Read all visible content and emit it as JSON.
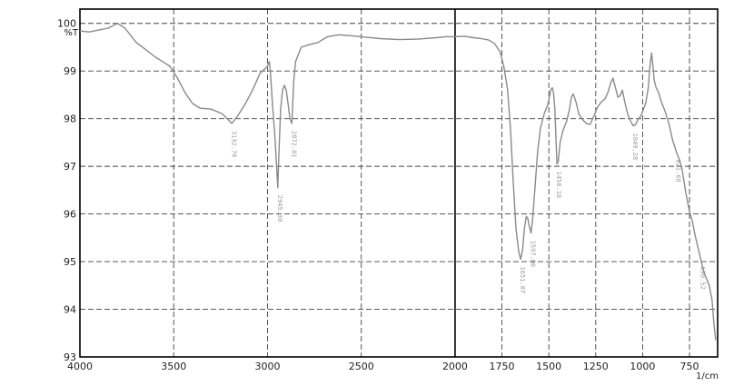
{
  "chart_data": {
    "type": "line",
    "title": "",
    "ylabel": "%T",
    "xlabel": "1/cm",
    "xlim": [
      4000,
      600
    ],
    "ylim": [
      93,
      100.3
    ],
    "x_reversed": true,
    "grid": true,
    "colors": {
      "line": "#8a8a8a",
      "grid": "#444444",
      "frame": "#000000",
      "axis_2000": "#000000"
    },
    "x_ticks": [
      {
        "value": 4000,
        "label": "4000"
      },
      {
        "value": 3500,
        "label": "3500"
      },
      {
        "value": 3000,
        "label": "3000"
      },
      {
        "value": 2500,
        "label": "2500"
      },
      {
        "value": 2000,
        "label": "2000"
      },
      {
        "value": 1750,
        "label": "1750"
      },
      {
        "value": 1500,
        "label": "1500"
      },
      {
        "value": 1250,
        "label": "1250"
      },
      {
        "value": 1000,
        "label": "1000"
      },
      {
        "value": 750,
        "label": "750"
      }
    ],
    "y_ticks": [
      {
        "value": 100,
        "label": "100"
      },
      {
        "value": 99,
        "label": "99"
      },
      {
        "value": 98,
        "label": "98"
      },
      {
        "value": 97,
        "label": "97"
      },
      {
        "value": 96,
        "label": "96"
      },
      {
        "value": 95,
        "label": "95"
      },
      {
        "value": 94,
        "label": "94"
      },
      {
        "value": 93,
        "label": "93"
      }
    ],
    "series": [
      {
        "points": [
          [
            4000,
            99.84
          ],
          [
            3950,
            99.82
          ],
          [
            3900,
            99.86
          ],
          [
            3850,
            99.9
          ],
          [
            3800,
            100.0
          ],
          [
            3760,
            99.9
          ],
          [
            3700,
            99.6
          ],
          [
            3650,
            99.45
          ],
          [
            3600,
            99.3
          ],
          [
            3560,
            99.2
          ],
          [
            3520,
            99.1
          ],
          [
            3480,
            98.85
          ],
          [
            3440,
            98.55
          ],
          [
            3400,
            98.32
          ],
          [
            3360,
            98.22
          ],
          [
            3300,
            98.2
          ],
          [
            3240,
            98.1
          ],
          [
            3210,
            97.98
          ],
          [
            3190,
            97.9
          ],
          [
            3160,
            98.05
          ],
          [
            3120,
            98.3
          ],
          [
            3080,
            98.6
          ],
          [
            3040,
            98.95
          ],
          [
            3000,
            99.1
          ],
          [
            2990,
            99.2
          ],
          [
            2985,
            99.0
          ],
          [
            2975,
            98.4
          ],
          [
            2960,
            97.6
          ],
          [
            2950,
            96.9
          ],
          [
            2945,
            96.55
          ],
          [
            2940,
            97.2
          ],
          [
            2930,
            98.2
          ],
          [
            2920,
            98.6
          ],
          [
            2910,
            98.7
          ],
          [
            2900,
            98.6
          ],
          [
            2890,
            98.3
          ],
          [
            2880,
            98.0
          ],
          [
            2870,
            97.9
          ],
          [
            2860,
            98.8
          ],
          [
            2850,
            99.2
          ],
          [
            2820,
            99.5
          ],
          [
            2780,
            99.55
          ],
          [
            2730,
            99.6
          ],
          [
            2680,
            99.72
          ],
          [
            2620,
            99.76
          ],
          [
            2550,
            99.74
          ],
          [
            2500,
            99.72
          ],
          [
            2400,
            99.68
          ],
          [
            2300,
            99.66
          ],
          [
            2200,
            99.67
          ],
          [
            2100,
            99.7
          ],
          [
            2050,
            99.72
          ],
          [
            2000,
            99.72
          ],
          [
            1950,
            99.73
          ],
          [
            1900,
            99.7
          ],
          [
            1860,
            99.68
          ],
          [
            1820,
            99.65
          ],
          [
            1790,
            99.58
          ],
          [
            1760,
            99.4
          ],
          [
            1740,
            99.1
          ],
          [
            1720,
            98.6
          ],
          [
            1705,
            97.8
          ],
          [
            1690,
            96.7
          ],
          [
            1675,
            95.7
          ],
          [
            1660,
            95.2
          ],
          [
            1650,
            95.05
          ],
          [
            1640,
            95.25
          ],
          [
            1630,
            95.7
          ],
          [
            1620,
            95.95
          ],
          [
            1612,
            95.9
          ],
          [
            1605,
            95.75
          ],
          [
            1595,
            95.6
          ],
          [
            1585,
            95.95
          ],
          [
            1575,
            96.5
          ],
          [
            1560,
            97.3
          ],
          [
            1545,
            97.8
          ],
          [
            1525,
            98.1
          ],
          [
            1505,
            98.3
          ],
          [
            1490,
            98.6
          ],
          [
            1482,
            98.65
          ],
          [
            1475,
            98.55
          ],
          [
            1468,
            98.2
          ],
          [
            1462,
            97.6
          ],
          [
            1457,
            97.05
          ],
          [
            1450,
            97.1
          ],
          [
            1440,
            97.5
          ],
          [
            1425,
            97.75
          ],
          [
            1405,
            97.95
          ],
          [
            1390,
            98.2
          ],
          [
            1380,
            98.45
          ],
          [
            1370,
            98.52
          ],
          [
            1355,
            98.35
          ],
          [
            1340,
            98.1
          ],
          [
            1320,
            97.98
          ],
          [
            1300,
            97.9
          ],
          [
            1280,
            97.88
          ],
          [
            1260,
            98.05
          ],
          [
            1240,
            98.25
          ],
          [
            1220,
            98.35
          ],
          [
            1200,
            98.42
          ],
          [
            1185,
            98.55
          ],
          [
            1170,
            98.75
          ],
          [
            1158,
            98.85
          ],
          [
            1145,
            98.65
          ],
          [
            1132,
            98.45
          ],
          [
            1120,
            98.48
          ],
          [
            1108,
            98.6
          ],
          [
            1095,
            98.35
          ],
          [
            1080,
            98.1
          ],
          [
            1065,
            97.95
          ],
          [
            1050,
            97.85
          ],
          [
            1038,
            97.88
          ],
          [
            1025,
            97.98
          ],
          [
            1010,
            98.05
          ],
          [
            995,
            98.2
          ],
          [
            982,
            98.35
          ],
          [
            970,
            98.65
          ],
          [
            960,
            99.15
          ],
          [
            952,
            99.38
          ],
          [
            945,
            99.1
          ],
          [
            938,
            98.8
          ],
          [
            928,
            98.65
          ],
          [
            915,
            98.55
          ],
          [
            900,
            98.35
          ],
          [
            880,
            98.15
          ],
          [
            860,
            97.9
          ],
          [
            840,
            97.55
          ],
          [
            820,
            97.3
          ],
          [
            805,
            97.15
          ],
          [
            790,
            96.95
          ],
          [
            770,
            96.45
          ],
          [
            750,
            96.05
          ],
          [
            735,
            95.85
          ],
          [
            720,
            95.55
          ],
          [
            705,
            95.3
          ],
          [
            690,
            95.05
          ],
          [
            675,
            94.8
          ],
          [
            660,
            94.65
          ],
          [
            645,
            94.5
          ],
          [
            630,
            94.2
          ],
          [
            620,
            93.7
          ],
          [
            610,
            93.35
          ]
        ]
      }
    ],
    "peak_labels": [
      {
        "x": 3190,
        "y": 97.9,
        "label": "3192.76"
      },
      {
        "x": 2945,
        "y": 96.55,
        "label": "2945.30"
      },
      {
        "x": 2870,
        "y": 97.9,
        "label": "2872.01"
      },
      {
        "x": 1650,
        "y": 95.05,
        "label": "1651.07"
      },
      {
        "x": 1595,
        "y": 95.6,
        "label": "1597.06"
      },
      {
        "x": 1457,
        "y": 97.05,
        "label": "1458.18"
      },
      {
        "x": 1050,
        "y": 97.85,
        "label": "1049.28"
      },
      {
        "x": 820,
        "y": 97.3,
        "label": "821.68"
      },
      {
        "x": 690,
        "y": 95.05,
        "label": "690.52"
      }
    ]
  }
}
